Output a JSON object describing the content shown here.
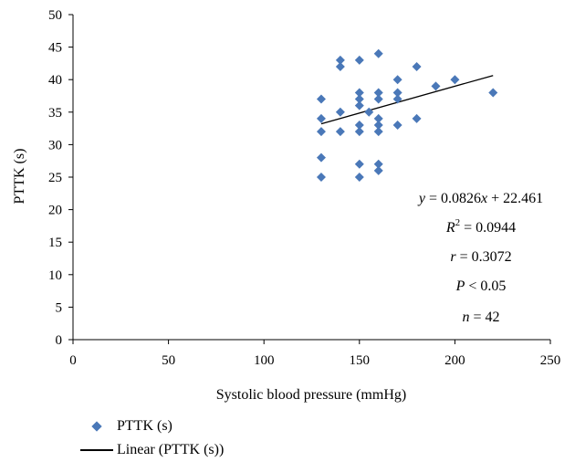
{
  "chart_data": {
    "type": "scatter",
    "xlabel": "Systolic blood pressure (mmHg)",
    "ylabel": "PTTK (s)",
    "xlim": [
      0,
      250
    ],
    "ylim": [
      0,
      50
    ],
    "x_ticks": [
      "0",
      "50",
      "100",
      "150",
      "200",
      "250"
    ],
    "y_ticks": [
      "0",
      "5",
      "10",
      "15",
      "20",
      "25",
      "30",
      "35",
      "40",
      "45",
      "50"
    ],
    "grid": false,
    "legend_position": "bottom-left",
    "marker_color": "#4a78b8",
    "line_color": "#000000",
    "series": [
      {
        "name": "PTTK (s)",
        "points": [
          [
            130,
            37
          ],
          [
            130,
            34
          ],
          [
            130,
            32
          ],
          [
            130,
            28
          ],
          [
            130,
            25
          ],
          [
            140,
            43
          ],
          [
            140,
            42
          ],
          [
            140,
            35
          ],
          [
            140,
            32
          ],
          [
            150,
            43
          ],
          [
            150,
            38
          ],
          [
            150,
            37
          ],
          [
            150,
            36
          ],
          [
            150,
            33
          ],
          [
            150,
            32
          ],
          [
            150,
            27
          ],
          [
            150,
            25
          ],
          [
            155,
            35
          ],
          [
            160,
            44
          ],
          [
            160,
            38
          ],
          [
            160,
            37
          ],
          [
            160,
            34
          ],
          [
            160,
            33
          ],
          [
            160,
            32
          ],
          [
            160,
            27
          ],
          [
            160,
            26
          ],
          [
            170,
            40
          ],
          [
            170,
            38
          ],
          [
            170,
            37
          ],
          [
            170,
            33
          ],
          [
            180,
            42
          ],
          [
            180,
            34
          ],
          [
            190,
            39
          ],
          [
            200,
            40
          ],
          [
            220,
            38
          ]
        ]
      }
    ],
    "trendline": {
      "name": "Linear (PTTK (s))",
      "slope": 0.0826,
      "intercept": 22.461,
      "x_range": [
        130,
        220
      ]
    },
    "annotations": [
      "y = 0.0826x + 22.461",
      "R2 = 0.0944",
      "r = 0.3072",
      "P < 0.05",
      "n = 42"
    ]
  },
  "legend": {
    "items": [
      "PTTK (s)",
      "Linear (PTTK (s))"
    ]
  }
}
